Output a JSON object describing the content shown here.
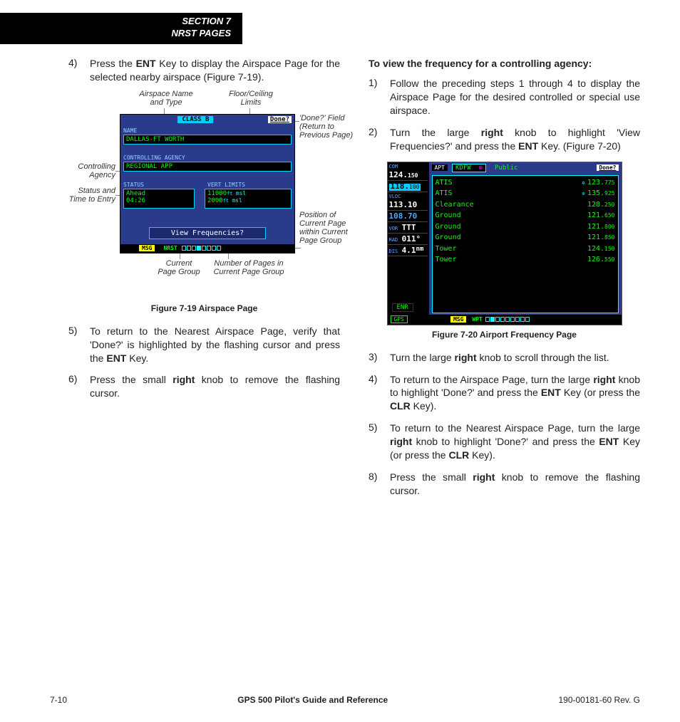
{
  "header": {
    "line1": "SECTION 7",
    "line2": "NRST PAGES"
  },
  "left": {
    "step4_pre": "Press the ",
    "step4_key": "ENT",
    "step4_post": " Key to display the Airspace Page for the selected nearby airspace (Figure 7-19).",
    "step5_pre": "To return to the Nearest Airspace Page, verify that 'Done?' is highlighted by the flashing cursor and press the ",
    "step5_key": "ENT",
    "step5_post": " Key.",
    "step6_pre": "Press the small ",
    "step6_key": "right",
    "step6_post": " knob to remove the flashing cursor.",
    "fig19_caption": "Figure 7-19  Airspace Page"
  },
  "callouts19": {
    "name_type": "Airspace Name\nand Type",
    "floor_ceil": "Floor/Ceiling\nLimits",
    "done": "'Done?' Field\n(Return to\nPrevious Page)",
    "agency": "Controlling\nAgency",
    "status": "Status and\nTime to Entry",
    "position": "Position of\nCurrent Page\nwithin Current\nPage Group",
    "cur_group": "Current\nPage Group",
    "num_pages": "Number of Pages in\nCurrent Page Group"
  },
  "gps19": {
    "class": "CLASS B",
    "done": "Done?",
    "name_lbl": "NAME",
    "name": "DALLAS-FT WORTH",
    "agency_lbl": "CONTROLLING AGENCY",
    "agency": "REGIONAL APP",
    "status_lbl": "STATUS",
    "status1": "Ahead",
    "status2": "04:26",
    "vert_lbl": "VERT LIMITS",
    "vert1": "11000",
    "vert1_unit": "msl",
    "vert2": "2000",
    "vert2_unit": "msl",
    "viewfreq": "View Frequencies?",
    "msg": "MSG",
    "nrst": "NRST",
    "page_fill_index": 3,
    "page_count": 8
  },
  "right": {
    "subhead": "To view the frequency for a controlling agency:",
    "s1": "Follow the preceding steps 1 through 4 to display the Airspace Page for the desired controlled or special use airspace.",
    "s2_a": "Turn the large ",
    "s2_k1": "right",
    "s2_b": " knob to highlight 'View Frequencies?' and press the ",
    "s2_k2": "ENT",
    "s2_c": " Key. (Figure 7-20)",
    "fig20_caption": "Figure 7-20  Airport Frequency Page",
    "s3_a": "Turn the large ",
    "s3_k": "right",
    "s3_b": " knob to scroll through the list.",
    "s4_a": "To return to the Airspace Page, turn the large ",
    "s4_k1": "right",
    "s4_b": " knob to highlight 'Done?' and press the ",
    "s4_k2": "ENT",
    "s4_c": " Key (or press the ",
    "s4_k3": "CLR",
    "s4_d": " Key).",
    "s5_a": "To return to the Nearest Airspace Page, turn the large ",
    "s5_k1": "right",
    "s5_b": " knob to highlight 'Done?' and press the ",
    "s5_k2": "ENT",
    "s5_c": " Key (or press the ",
    "s5_k3": "CLR",
    "s5_d": " Key).",
    "s8_a": "Press the small ",
    "s8_k": "right",
    "s8_b": " knob to remove the flashing cursor."
  },
  "gps20": {
    "com_lbl": "COM",
    "com1": "124.150",
    "com2": "118.100",
    "vloc_lbl": "VLOC",
    "vloc1": "113.10",
    "vloc2": "108.70",
    "vor_lbl": "VOR",
    "vor": "TTT",
    "rad_lbl": "RAD",
    "rad": "011°",
    "dis_lbl": "DIS",
    "dis": "4.1",
    "apt": "APT",
    "ident": "KDFW",
    "public": "Public",
    "done": "Done?",
    "rows": [
      {
        "svc": "ATIS",
        "rx": true,
        "int": "123",
        "dec": "775"
      },
      {
        "svc": "ATIS",
        "rx": true,
        "int": "135",
        "dec": "925"
      },
      {
        "svc": "Clearance",
        "rx": false,
        "int": "128",
        "dec": "250"
      },
      {
        "svc": "Ground",
        "rx": false,
        "int": "121",
        "dec": "650"
      },
      {
        "svc": "Ground",
        "rx": false,
        "int": "121",
        "dec": "800"
      },
      {
        "svc": "Ground",
        "rx": false,
        "int": "121",
        "dec": "850"
      },
      {
        "svc": "Tower",
        "rx": false,
        "int": "124",
        "dec": "150"
      },
      {
        "svc": "Tower",
        "rx": false,
        "int": "126",
        "dec": "550"
      }
    ],
    "enr": "ENR",
    "gps": "GPS",
    "msg": "MSG",
    "wpt": "WPT",
    "page_fill_index": 1,
    "page_count": 9
  },
  "footer": {
    "page": "7-10",
    "title": "GPS 500 Pilot's Guide and Reference",
    "doc": "190-00181-60  Rev. G"
  },
  "colors": {
    "device_blue": "#2a3b8c",
    "cyan": "#00d0ff",
    "green": "#00ff00",
    "yellow": "#ffff00",
    "black": "#000000"
  }
}
